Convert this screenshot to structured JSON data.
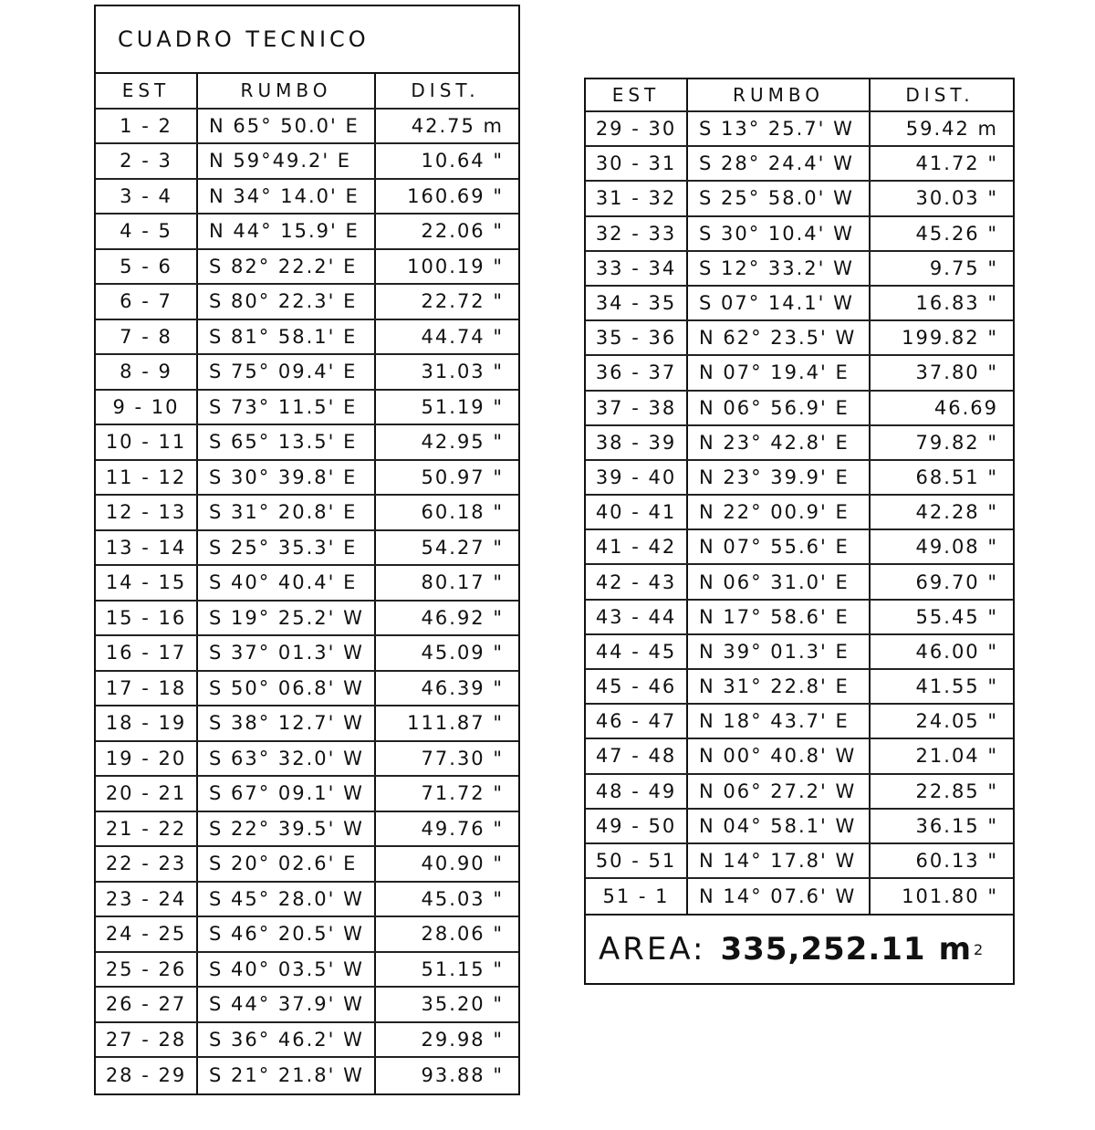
{
  "left_table": {
    "title": "CUADRO TECNICO",
    "headers": {
      "est": "EST",
      "rumbo": "RUMBO",
      "dist": "DIST."
    },
    "rows": [
      {
        "est": "1 - 2",
        "rumbo": "N 65° 50.0' E",
        "dist": "42.75 m"
      },
      {
        "est": "2 - 3",
        "rumbo": "N 59°49.2' E",
        "dist": "10.64 \""
      },
      {
        "est": "3 - 4",
        "rumbo": "N 34° 14.0' E",
        "dist": "160.69 \""
      },
      {
        "est": "4 - 5",
        "rumbo": "N 44° 15.9' E",
        "dist": "22.06 \""
      },
      {
        "est": "5 - 6",
        "rumbo": "S 82° 22.2' E",
        "dist": "100.19 \""
      },
      {
        "est": "6 - 7",
        "rumbo": "S 80° 22.3' E",
        "dist": "22.72 \""
      },
      {
        "est": "7 - 8",
        "rumbo": "S 81° 58.1' E",
        "dist": "44.74 \""
      },
      {
        "est": "8 - 9",
        "rumbo": "S 75° 09.4' E",
        "dist": "31.03 \""
      },
      {
        "est": "9 - 10",
        "rumbo": "S 73° 11.5' E",
        "dist": "51.19 \""
      },
      {
        "est": "10 - 11",
        "rumbo": "S 65° 13.5' E",
        "dist": "42.95 \""
      },
      {
        "est": "11 - 12",
        "rumbo": "S 30° 39.8' E",
        "dist": "50.97 \""
      },
      {
        "est": "12 - 13",
        "rumbo": "S 31° 20.8' E",
        "dist": "60.18 \""
      },
      {
        "est": "13 - 14",
        "rumbo": "S 25° 35.3' E",
        "dist": "54.27 \""
      },
      {
        "est": "14 - 15",
        "rumbo": "S 40° 40.4' E",
        "dist": "80.17 \""
      },
      {
        "est": "15 - 16",
        "rumbo": "S 19° 25.2' W",
        "dist": "46.92 \""
      },
      {
        "est": "16 - 17",
        "rumbo": "S 37° 01.3' W",
        "dist": "45.09 \""
      },
      {
        "est": "17 - 18",
        "rumbo": "S 50° 06.8' W",
        "dist": "46.39 \""
      },
      {
        "est": "18 - 19",
        "rumbo": "S 38° 12.7' W",
        "dist": "111.87 \""
      },
      {
        "est": "19 - 20",
        "rumbo": "S 63° 32.0' W",
        "dist": "77.30 \""
      },
      {
        "est": "20 - 21",
        "rumbo": "S 67° 09.1' W",
        "dist": "71.72 \""
      },
      {
        "est": "21 - 22",
        "rumbo": "S 22° 39.5' W",
        "dist": "49.76 \""
      },
      {
        "est": "22 - 23",
        "rumbo": "S 20° 02.6' E",
        "dist": "40.90 \""
      },
      {
        "est": "23 - 24",
        "rumbo": "S 45° 28.0' W",
        "dist": "45.03 \""
      },
      {
        "est": "24 - 25",
        "rumbo": "S 46° 20.5' W",
        "dist": "28.06 \""
      },
      {
        "est": "25 - 26",
        "rumbo": "S 40° 03.5' W",
        "dist": "51.15 \""
      },
      {
        "est": "26 - 27",
        "rumbo": "S 44° 37.9' W",
        "dist": "35.20 \""
      },
      {
        "est": "27 - 28",
        "rumbo": "S 36° 46.2' W",
        "dist": "29.98 \""
      },
      {
        "est": "28 - 29",
        "rumbo": "S 21° 21.8' W",
        "dist": "93.88 \""
      }
    ]
  },
  "right_table": {
    "headers": {
      "est": "EST",
      "rumbo": "RUMBO",
      "dist": "DIST."
    },
    "rows": [
      {
        "est": "29 - 30",
        "rumbo": "S 13° 25.7' W",
        "dist": "59.42 m"
      },
      {
        "est": "30 - 31",
        "rumbo": "S 28° 24.4' W",
        "dist": "41.72 \""
      },
      {
        "est": "31 - 32",
        "rumbo": "S 25° 58.0' W",
        "dist": "30.03 \""
      },
      {
        "est": "32 - 33",
        "rumbo": "S 30° 10.4' W",
        "dist": "45.26 \""
      },
      {
        "est": "33 - 34",
        "rumbo": "S 12° 33.2' W",
        "dist": "9.75 \""
      },
      {
        "est": "34 - 35",
        "rumbo": "S 07° 14.1' W",
        "dist": "16.83 \""
      },
      {
        "est": "35 - 36",
        "rumbo": "N 62° 23.5' W",
        "dist": "199.82 \""
      },
      {
        "est": "36 - 37",
        "rumbo": "N 07° 19.4' E",
        "dist": "37.80 \""
      },
      {
        "est": "37 - 38",
        "rumbo": "N 06° 56.9' E",
        "dist": "46.69"
      },
      {
        "est": "38 - 39",
        "rumbo": "N 23° 42.8' E",
        "dist": "79.82 \""
      },
      {
        "est": "39 - 40",
        "rumbo": "N 23° 39.9' E",
        "dist": "68.51 \""
      },
      {
        "est": "40 - 41",
        "rumbo": "N 22° 00.9' E",
        "dist": "42.28 \""
      },
      {
        "est": "41 - 42",
        "rumbo": "N 07° 55.6' E",
        "dist": "49.08 \""
      },
      {
        "est": "42 - 43",
        "rumbo": "N 06° 31.0' E",
        "dist": "69.70 \""
      },
      {
        "est": "43 - 44",
        "rumbo": "N 17° 58.6' E",
        "dist": "55.45 \""
      },
      {
        "est": "44 - 45",
        "rumbo": "N 39° 01.3' E",
        "dist": "46.00 \""
      },
      {
        "est": "45 - 46",
        "rumbo": "N 31° 22.8' E",
        "dist": "41.55 \""
      },
      {
        "est": "46 - 47",
        "rumbo": "N 18° 43.7' E",
        "dist": "24.05 \""
      },
      {
        "est": "47 - 48",
        "rumbo": "N 00° 40.8' W",
        "dist": "21.04 \""
      },
      {
        "est": "48 - 49",
        "rumbo": "N 06° 27.2' W",
        "dist": "22.85 \""
      },
      {
        "est": "49 - 50",
        "rumbo": "N 04° 58.1' W",
        "dist": "36.15 \""
      },
      {
        "est": "50 - 51",
        "rumbo": "N 14° 17.8' W",
        "dist": "60.13 \""
      },
      {
        "est": "51 - 1",
        "rumbo": "N 14° 07.6' W",
        "dist": "101.80 \""
      }
    ],
    "area_label": "AREA:",
    "area_value": "335,252.11",
    "area_unit": "m",
    "area_unit_exp": "2"
  }
}
